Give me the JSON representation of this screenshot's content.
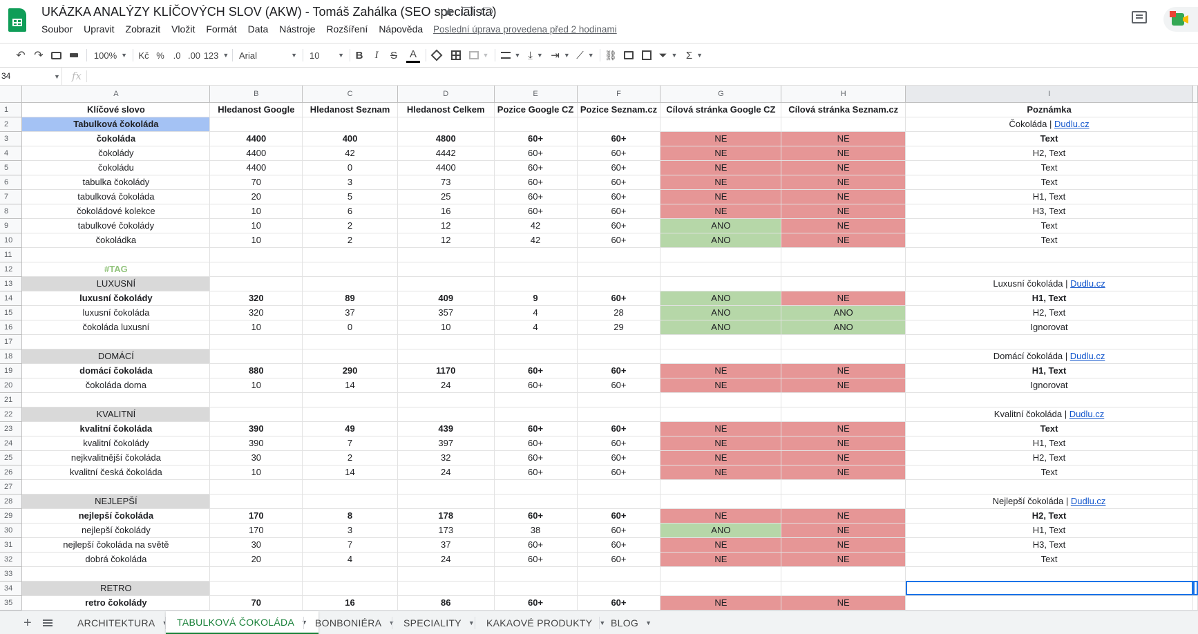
{
  "title_bar": {
    "doc_title": "UKÁZKA ANALÝZY KLÍČOVÝCH SLOV (AKW) - Tomáš Zahálka (SEO specialista)",
    "star_icon": "★",
    "menu": [
      "Soubor",
      "Upravit",
      "Zobrazit",
      "Vložit",
      "Formát",
      "Data",
      "Nástroje",
      "Rozšíření",
      "Nápověda"
    ],
    "last_edit": "Poslední úprava provedena před 2 hodinami"
  },
  "toolbar": {
    "zoom": "100%",
    "currency": "Kč",
    "percent": "%",
    "dec_less": ".0",
    "dec_more": ".00",
    "format_more": "123",
    "font": "Arial",
    "font_size": "10",
    "bold": "B",
    "italic": "I",
    "strike": "S",
    "text_color": "A",
    "link": "⛓",
    "sigma": "Σ"
  },
  "formula_bar": {
    "name_box": "34",
    "fx": "fx",
    "value": ""
  },
  "columns": [
    "A",
    "B",
    "C",
    "D",
    "E",
    "F",
    "G",
    "H",
    "I"
  ],
  "rows": [
    {
      "n": "1",
      "cells": [
        "Klíčové slovo",
        "Hledanost Google",
        "Hledanost Seznam",
        "Hledanost Celkem",
        "Pozice Google CZ",
        "Pozice Seznam.cz",
        "Cílová stránka Google CZ",
        "Cílová stránka Seznam.cz",
        "Poznámka"
      ],
      "style": "header"
    },
    {
      "n": "2",
      "cells": [
        "Tabulková čokoláda",
        "",
        "",
        "",
        "",
        "",
        "",
        "",
        "Čokoláda | Dudlu.cz"
      ],
      "style": "group-blue"
    },
    {
      "n": "3",
      "cells": [
        "čokoláda",
        "4400",
        "400",
        "4800",
        "60+",
        "60+",
        "NE",
        "NE",
        "Text"
      ],
      "style": "bold"
    },
    {
      "n": "4",
      "cells": [
        "čokolády",
        "4400",
        "42",
        "4442",
        "60+",
        "60+",
        "NE",
        "NE",
        "H2, Text"
      ]
    },
    {
      "n": "5",
      "cells": [
        "čokoládu",
        "4400",
        "0",
        "4400",
        "60+",
        "60+",
        "NE",
        "NE",
        "Text"
      ]
    },
    {
      "n": "6",
      "cells": [
        "tabulka čokolády",
        "70",
        "3",
        "73",
        "60+",
        "60+",
        "NE",
        "NE",
        "Text"
      ]
    },
    {
      "n": "7",
      "cells": [
        "tabulková čokoláda",
        "20",
        "5",
        "25",
        "60+",
        "60+",
        "NE",
        "NE",
        "H1, Text"
      ]
    },
    {
      "n": "8",
      "cells": [
        "čokoládové kolekce",
        "10",
        "6",
        "16",
        "60+",
        "60+",
        "NE",
        "NE",
        "H3, Text"
      ]
    },
    {
      "n": "9",
      "cells": [
        "tabulkové čokolády",
        "10",
        "2",
        "12",
        "42",
        "60+",
        "ANO",
        "NE",
        "Text"
      ]
    },
    {
      "n": "10",
      "cells": [
        "čokoládka",
        "10",
        "2",
        "12",
        "42",
        "60+",
        "ANO",
        "NE",
        "Text"
      ]
    },
    {
      "n": "11",
      "cells": [
        "",
        "",
        "",
        "",
        "",
        "",
        "",
        "",
        ""
      ],
      "style": "empty"
    },
    {
      "n": "12",
      "cells": [
        "#TAG",
        "",
        "",
        "",
        "",
        "",
        "",
        "",
        ""
      ],
      "style": "tag"
    },
    {
      "n": "13",
      "cells": [
        "LUXUSNÍ",
        "",
        "",
        "",
        "",
        "",
        "",
        "",
        "Luxusní čokoláda | Dudlu.cz"
      ],
      "style": "group-grey"
    },
    {
      "n": "14",
      "cells": [
        "luxusní čokolády",
        "320",
        "89",
        "409",
        "9",
        "60+",
        "ANO",
        "NE",
        "H1, Text"
      ],
      "style": "bold"
    },
    {
      "n": "15",
      "cells": [
        "luxusní čokoláda",
        "320",
        "37",
        "357",
        "4",
        "28",
        "ANO",
        "ANO",
        "H2, Text"
      ]
    },
    {
      "n": "16",
      "cells": [
        "čokoláda luxusní",
        "10",
        "0",
        "10",
        "4",
        "29",
        "ANO",
        "ANO",
        "Ignorovat"
      ]
    },
    {
      "n": "17",
      "cells": [
        "",
        "",
        "",
        "",
        "",
        "",
        "",
        "",
        ""
      ],
      "style": "empty"
    },
    {
      "n": "18",
      "cells": [
        "DOMÁCÍ",
        "",
        "",
        "",
        "",
        "",
        "",
        "",
        "Domácí čokoláda | Dudlu.cz"
      ],
      "style": "group-grey"
    },
    {
      "n": "19",
      "cells": [
        "domácí čokoláda",
        "880",
        "290",
        "1170",
        "60+",
        "60+",
        "NE",
        "NE",
        "H1, Text"
      ],
      "style": "bold"
    },
    {
      "n": "20",
      "cells": [
        "čokoláda doma",
        "10",
        "14",
        "24",
        "60+",
        "60+",
        "NE",
        "NE",
        "Ignorovat"
      ]
    },
    {
      "n": "21",
      "cells": [
        "",
        "",
        "",
        "",
        "",
        "",
        "",
        "",
        ""
      ],
      "style": "empty"
    },
    {
      "n": "22",
      "cells": [
        "KVALITNÍ",
        "",
        "",
        "",
        "",
        "",
        "",
        "",
        "Kvalitní čokoláda | Dudlu.cz"
      ],
      "style": "group-grey"
    },
    {
      "n": "23",
      "cells": [
        "kvalitní čokoláda",
        "390",
        "49",
        "439",
        "60+",
        "60+",
        "NE",
        "NE",
        "Text"
      ],
      "style": "bold"
    },
    {
      "n": "24",
      "cells": [
        "kvalitní čokolády",
        "390",
        "7",
        "397",
        "60+",
        "60+",
        "NE",
        "NE",
        "H1, Text"
      ]
    },
    {
      "n": "25",
      "cells": [
        "nejkvalitnější čokoláda",
        "30",
        "2",
        "32",
        "60+",
        "60+",
        "NE",
        "NE",
        "H2, Text"
      ]
    },
    {
      "n": "26",
      "cells": [
        "kvalitní česká čokoláda",
        "10",
        "14",
        "24",
        "60+",
        "60+",
        "NE",
        "NE",
        "Text"
      ]
    },
    {
      "n": "27",
      "cells": [
        "",
        "",
        "",
        "",
        "",
        "",
        "",
        "",
        ""
      ],
      "style": "empty"
    },
    {
      "n": "28",
      "cells": [
        "NEJLEPŠÍ",
        "",
        "",
        "",
        "",
        "",
        "",
        "",
        "Nejlepší čokoláda | Dudlu.cz"
      ],
      "style": "group-grey"
    },
    {
      "n": "29",
      "cells": [
        "nejlepší čokoláda",
        "170",
        "8",
        "178",
        "60+",
        "60+",
        "NE",
        "NE",
        "H2, Text"
      ],
      "style": "bold"
    },
    {
      "n": "30",
      "cells": [
        "nejlepší čokolády",
        "170",
        "3",
        "173",
        "38",
        "60+",
        "ANO",
        "NE",
        "H1, Text"
      ]
    },
    {
      "n": "31",
      "cells": [
        "nejlepší čokoláda na světě",
        "30",
        "7",
        "37",
        "60+",
        "60+",
        "NE",
        "NE",
        "H3, Text"
      ]
    },
    {
      "n": "32",
      "cells": [
        "dobrá čokoláda",
        "20",
        "4",
        "24",
        "60+",
        "60+",
        "NE",
        "NE",
        "Text"
      ]
    },
    {
      "n": "33",
      "cells": [
        "",
        "",
        "",
        "",
        "",
        "",
        "",
        "",
        ""
      ],
      "style": "empty"
    },
    {
      "n": "34",
      "cells": [
        "RETRO",
        "",
        "",
        "",
        "",
        "",
        "",
        "",
        ""
      ],
      "style": "group-grey"
    },
    {
      "n": "35",
      "cells": [
        "retro čokolády",
        "70",
        "16",
        "86",
        "60+",
        "60+",
        "NE",
        "NE",
        ""
      ],
      "style": "bold"
    }
  ],
  "sheet_tabs": [
    {
      "label": "ARCHITEKTURA"
    },
    {
      "label": "TABULKOVÁ ČOKOLÁDA",
      "active": true
    },
    {
      "label": "BONBONIÉRA"
    },
    {
      "label": "SPECIALITY"
    },
    {
      "label": "KAKAOVÉ PRODUKTY"
    },
    {
      "label": "BLOG"
    }
  ],
  "colors": {
    "ne": "#e69696",
    "ano": "#b6d7a8",
    "group_blue": "#a4c2f4",
    "group_grey": "#d9d9d9",
    "tag": "#93c47d",
    "active_tab": "#188038"
  }
}
